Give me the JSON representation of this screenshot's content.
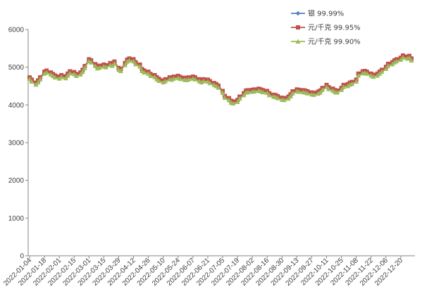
{
  "chart_data": {
    "type": "line",
    "ylim": [
      0,
      6000
    ],
    "yticks": [
      0,
      1000,
      2000,
      3000,
      4000,
      5000,
      6000
    ],
    "grid": false,
    "legend_position": "top-right",
    "x_tick_labels": [
      "2022-01-04",
      "2022-01-18",
      "2022-02-01",
      "2022-02-15",
      "2022-03-01",
      "2022-03-15",
      "2022-03-29",
      "2022-04-12",
      "2022-04-26",
      "2022-05-10",
      "2022-05-24",
      "2022-06-07",
      "2022-06-21",
      "2022-07-05",
      "2022-07-19",
      "2022-08-02",
      "2022-08-16",
      "2022-08-30",
      "2022-09-13",
      "2022-09-27",
      "2022-10-11",
      "2022-10-25",
      "2022-11-08",
      "2022-11-22",
      "2022-12-06",
      "2022-12-20"
    ],
    "x": [
      "2022-01-04",
      "2022-01-06",
      "2022-01-10",
      "2022-01-12",
      "2022-01-14",
      "2022-01-18",
      "2022-01-20",
      "2022-01-24",
      "2022-01-26",
      "2022-01-28",
      "2022-02-01",
      "2022-02-03",
      "2022-02-07",
      "2022-02-09",
      "2022-02-11",
      "2022-02-15",
      "2022-02-17",
      "2022-02-21",
      "2022-02-23",
      "2022-02-25",
      "2022-03-01",
      "2022-03-03",
      "2022-03-07",
      "2022-03-09",
      "2022-03-11",
      "2022-03-15",
      "2022-03-17",
      "2022-03-21",
      "2022-03-23",
      "2022-03-25",
      "2022-03-29",
      "2022-03-31",
      "2022-04-04",
      "2022-04-06",
      "2022-04-08",
      "2022-04-12",
      "2022-04-14",
      "2022-04-18",
      "2022-04-20",
      "2022-04-22",
      "2022-04-26",
      "2022-04-28",
      "2022-05-02",
      "2022-05-04",
      "2022-05-06",
      "2022-05-10",
      "2022-05-12",
      "2022-05-16",
      "2022-05-18",
      "2022-05-20",
      "2022-05-24",
      "2022-05-26",
      "2022-05-30",
      "2022-06-01",
      "2022-06-03",
      "2022-06-07",
      "2022-06-09",
      "2022-06-13",
      "2022-06-15",
      "2022-06-17",
      "2022-06-21",
      "2022-06-23",
      "2022-06-27",
      "2022-06-29",
      "2022-07-01",
      "2022-07-05",
      "2022-07-07",
      "2022-07-11",
      "2022-07-13",
      "2022-07-15",
      "2022-07-19",
      "2022-07-21",
      "2022-07-25",
      "2022-07-27",
      "2022-07-29",
      "2022-08-02",
      "2022-08-04",
      "2022-08-08",
      "2022-08-10",
      "2022-08-12",
      "2022-08-16",
      "2022-08-18",
      "2022-08-22",
      "2022-08-24",
      "2022-08-26",
      "2022-08-30",
      "2022-09-01",
      "2022-09-05",
      "2022-09-07",
      "2022-09-09",
      "2022-09-13",
      "2022-09-15",
      "2022-09-19",
      "2022-09-21",
      "2022-09-23",
      "2022-09-27",
      "2022-09-29",
      "2022-10-03",
      "2022-10-05",
      "2022-10-07",
      "2022-10-11",
      "2022-10-13",
      "2022-10-17",
      "2022-10-19",
      "2022-10-21",
      "2022-10-25",
      "2022-10-27",
      "2022-10-31",
      "2022-11-02",
      "2022-11-04",
      "2022-11-08",
      "2022-11-10",
      "2022-11-14",
      "2022-11-16",
      "2022-11-18",
      "2022-11-22",
      "2022-11-24",
      "2022-11-28",
      "2022-11-30",
      "2022-12-02",
      "2022-12-06",
      "2022-12-08",
      "2022-12-12",
      "2022-12-14",
      "2022-12-16",
      "2022-12-20",
      "2022-12-22",
      "2022-12-26",
      "2022-12-28",
      "2022-12-30"
    ],
    "series": [
      {
        "name": "银 99.99%",
        "color": "#4F81BD",
        "marker": "diamond",
        "values": [
          4700,
          4640,
          4560,
          4620,
          4700,
          4850,
          4880,
          4830,
          4790,
          4750,
          4720,
          4760,
          4730,
          4800,
          4860,
          4840,
          4790,
          4830,
          4900,
          5000,
          5180,
          5150,
          5050,
          4990,
          5010,
          5040,
          5020,
          5080,
          5060,
          5120,
          4950,
          4920,
          5080,
          5170,
          5200,
          5180,
          5100,
          5040,
          4920,
          4880,
          4850,
          4790,
          4760,
          4700,
          4660,
          4620,
          4650,
          4700,
          4690,
          4720,
          4740,
          4710,
          4690,
          4680,
          4700,
          4720,
          4700,
          4650,
          4620,
          4650,
          4640,
          4600,
          4550,
          4520,
          4480,
          4340,
          4210,
          4150,
          4080,
          4060,
          4100,
          4190,
          4280,
          4350,
          4360,
          4370,
          4380,
          4400,
          4380,
          4360,
          4340,
          4280,
          4240,
          4230,
          4200,
          4160,
          4150,
          4190,
          4250,
          4330,
          4380,
          4370,
          4360,
          4350,
          4330,
          4300,
          4290,
          4320,
          4350,
          4420,
          4500,
          4440,
          4400,
          4360,
          4350,
          4420,
          4500,
          4520,
          4560,
          4580,
          4640,
          4800,
          4860,
          4870,
          4850,
          4800,
          4770,
          4800,
          4850,
          4900,
          4980,
          5060,
          5100,
          5150,
          5180,
          5220,
          5280,
          5250,
          5270,
          5200
        ]
      },
      {
        "name": "元/千克 99.95%",
        "color": "#C0504D",
        "marker": "square",
        "values": [
          4730,
          4670,
          4590,
          4650,
          4730,
          4880,
          4910,
          4860,
          4820,
          4780,
          4750,
          4790,
          4760,
          4830,
          4890,
          4870,
          4820,
          4860,
          4930,
          5030,
          5210,
          5180,
          5080,
          5020,
          5040,
          5070,
          5050,
          5110,
          5090,
          5150,
          4980,
          4950,
          5110,
          5200,
          5230,
          5210,
          5130,
          5070,
          4950,
          4910,
          4880,
          4820,
          4790,
          4730,
          4690,
          4650,
          4680,
          4730,
          4720,
          4750,
          4770,
          4740,
          4720,
          4710,
          4730,
          4750,
          4730,
          4680,
          4650,
          4680,
          4670,
          4630,
          4580,
          4550,
          4510,
          4370,
          4240,
          4180,
          4110,
          4090,
          4130,
          4220,
          4310,
          4380,
          4390,
          4400,
          4410,
          4430,
          4410,
          4390,
          4370,
          4310,
          4270,
          4260,
          4230,
          4190,
          4180,
          4220,
          4280,
          4360,
          4410,
          4400,
          4390,
          4380,
          4360,
          4330,
          4320,
          4350,
          4380,
          4450,
          4530,
          4470,
          4430,
          4390,
          4380,
          4450,
          4530,
          4550,
          4590,
          4610,
          4670,
          4830,
          4890,
          4900,
          4880,
          4830,
          4800,
          4830,
          4880,
          4930,
          5010,
          5090,
          5130,
          5180,
          5210,
          5250,
          5310,
          5280,
          5300,
          5230
        ]
      },
      {
        "name": "元/千克 99.90%",
        "color": "#9BBB59",
        "marker": "triangle",
        "values": [
          4690,
          4620,
          4540,
          4600,
          4680,
          4830,
          4860,
          4810,
          4770,
          4730,
          4700,
          4740,
          4710,
          4780,
          4840,
          4820,
          4770,
          4810,
          4880,
          4980,
          5160,
          5130,
          5030,
          4970,
          4990,
          5020,
          5000,
          5060,
          5040,
          5100,
          4930,
          4900,
          5060,
          5150,
          5180,
          5160,
          5080,
          5020,
          4900,
          4860,
          4830,
          4770,
          4740,
          4680,
          4640,
          4600,
          4630,
          4680,
          4670,
          4700,
          4720,
          4690,
          4670,
          4660,
          4680,
          4700,
          4680,
          4630,
          4600,
          4630,
          4620,
          4580,
          4530,
          4500,
          4460,
          4320,
          4190,
          4130,
          4060,
          4040,
          4080,
          4170,
          4260,
          4330,
          4340,
          4350,
          4360,
          4380,
          4360,
          4340,
          4320,
          4260,
          4220,
          4210,
          4180,
          4140,
          4130,
          4170,
          4230,
          4310,
          4360,
          4350,
          4340,
          4330,
          4310,
          4280,
          4270,
          4300,
          4330,
          4400,
          4480,
          4420,
          4380,
          4340,
          4330,
          4400,
          4480,
          4500,
          4540,
          4560,
          4620,
          4780,
          4840,
          4850,
          4830,
          4780,
          4750,
          4780,
          4830,
          4880,
          4960,
          5040,
          5080,
          5130,
          5160,
          5200,
          5260,
          5230,
          5250,
          5180
        ]
      }
    ]
  }
}
